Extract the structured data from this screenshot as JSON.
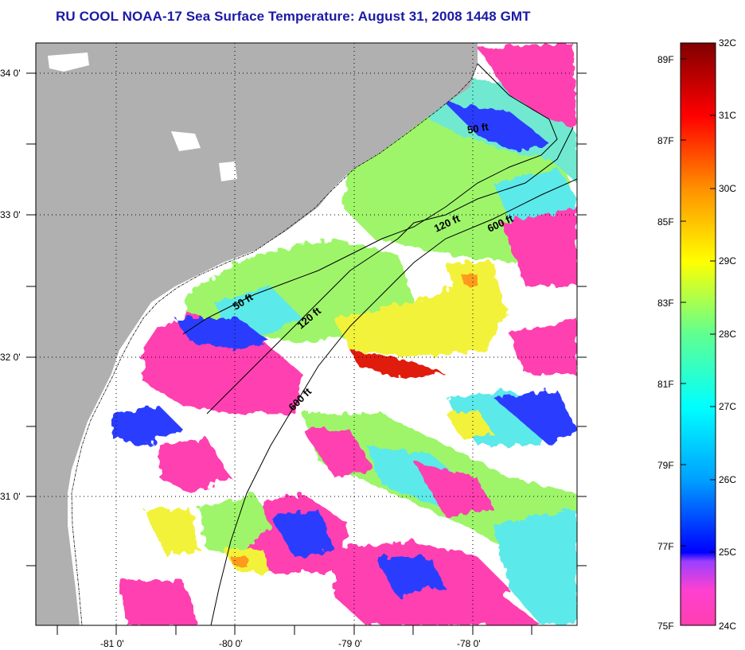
{
  "title": "RU COOL  NOAA-17  Sea Surface Temperature:  August 31, 2008 1448 GMT",
  "map": {
    "lon_labels": [
      "-81 0'",
      "-80 0'",
      "-79 0'",
      "-78 0'"
    ],
    "lat_labels": [
      "34 0'",
      "33 0'",
      "32 0'",
      "31 0'"
    ],
    "depth_contours": [
      "50 ft",
      "120 ft",
      "600 ft",
      "50 ft",
      "120 ft",
      "600 ft"
    ],
    "colors": {
      "land": "#b0b0b0",
      "cloud": "#ffffff",
      "cool_water": "#ff3fb0",
      "blue": "#2a3cff",
      "cyan": "#5ce9e9",
      "green": "#9ef56a",
      "yellow": "#f2f23a",
      "orange": "#ff9a1e",
      "red": "#e01a0a"
    }
  },
  "colorbar": {
    "fahrenheit_labels": [
      "89F",
      "87F",
      "85F",
      "83F",
      "81F",
      "79F",
      "77F",
      "75F"
    ],
    "celsius_labels": [
      "32C",
      "31C",
      "30C",
      "29C",
      "28C",
      "27C",
      "26C",
      "25C",
      "24C"
    ],
    "range_c": [
      24,
      32
    ],
    "range_f": [
      75,
      89.6
    ],
    "stops": [
      "#ff3fb0",
      "#b040ff",
      "#0000ff",
      "#00a0ff",
      "#00ffff",
      "#60ff90",
      "#ffff00",
      "#ff9000",
      "#ff0000",
      "#800000"
    ]
  }
}
